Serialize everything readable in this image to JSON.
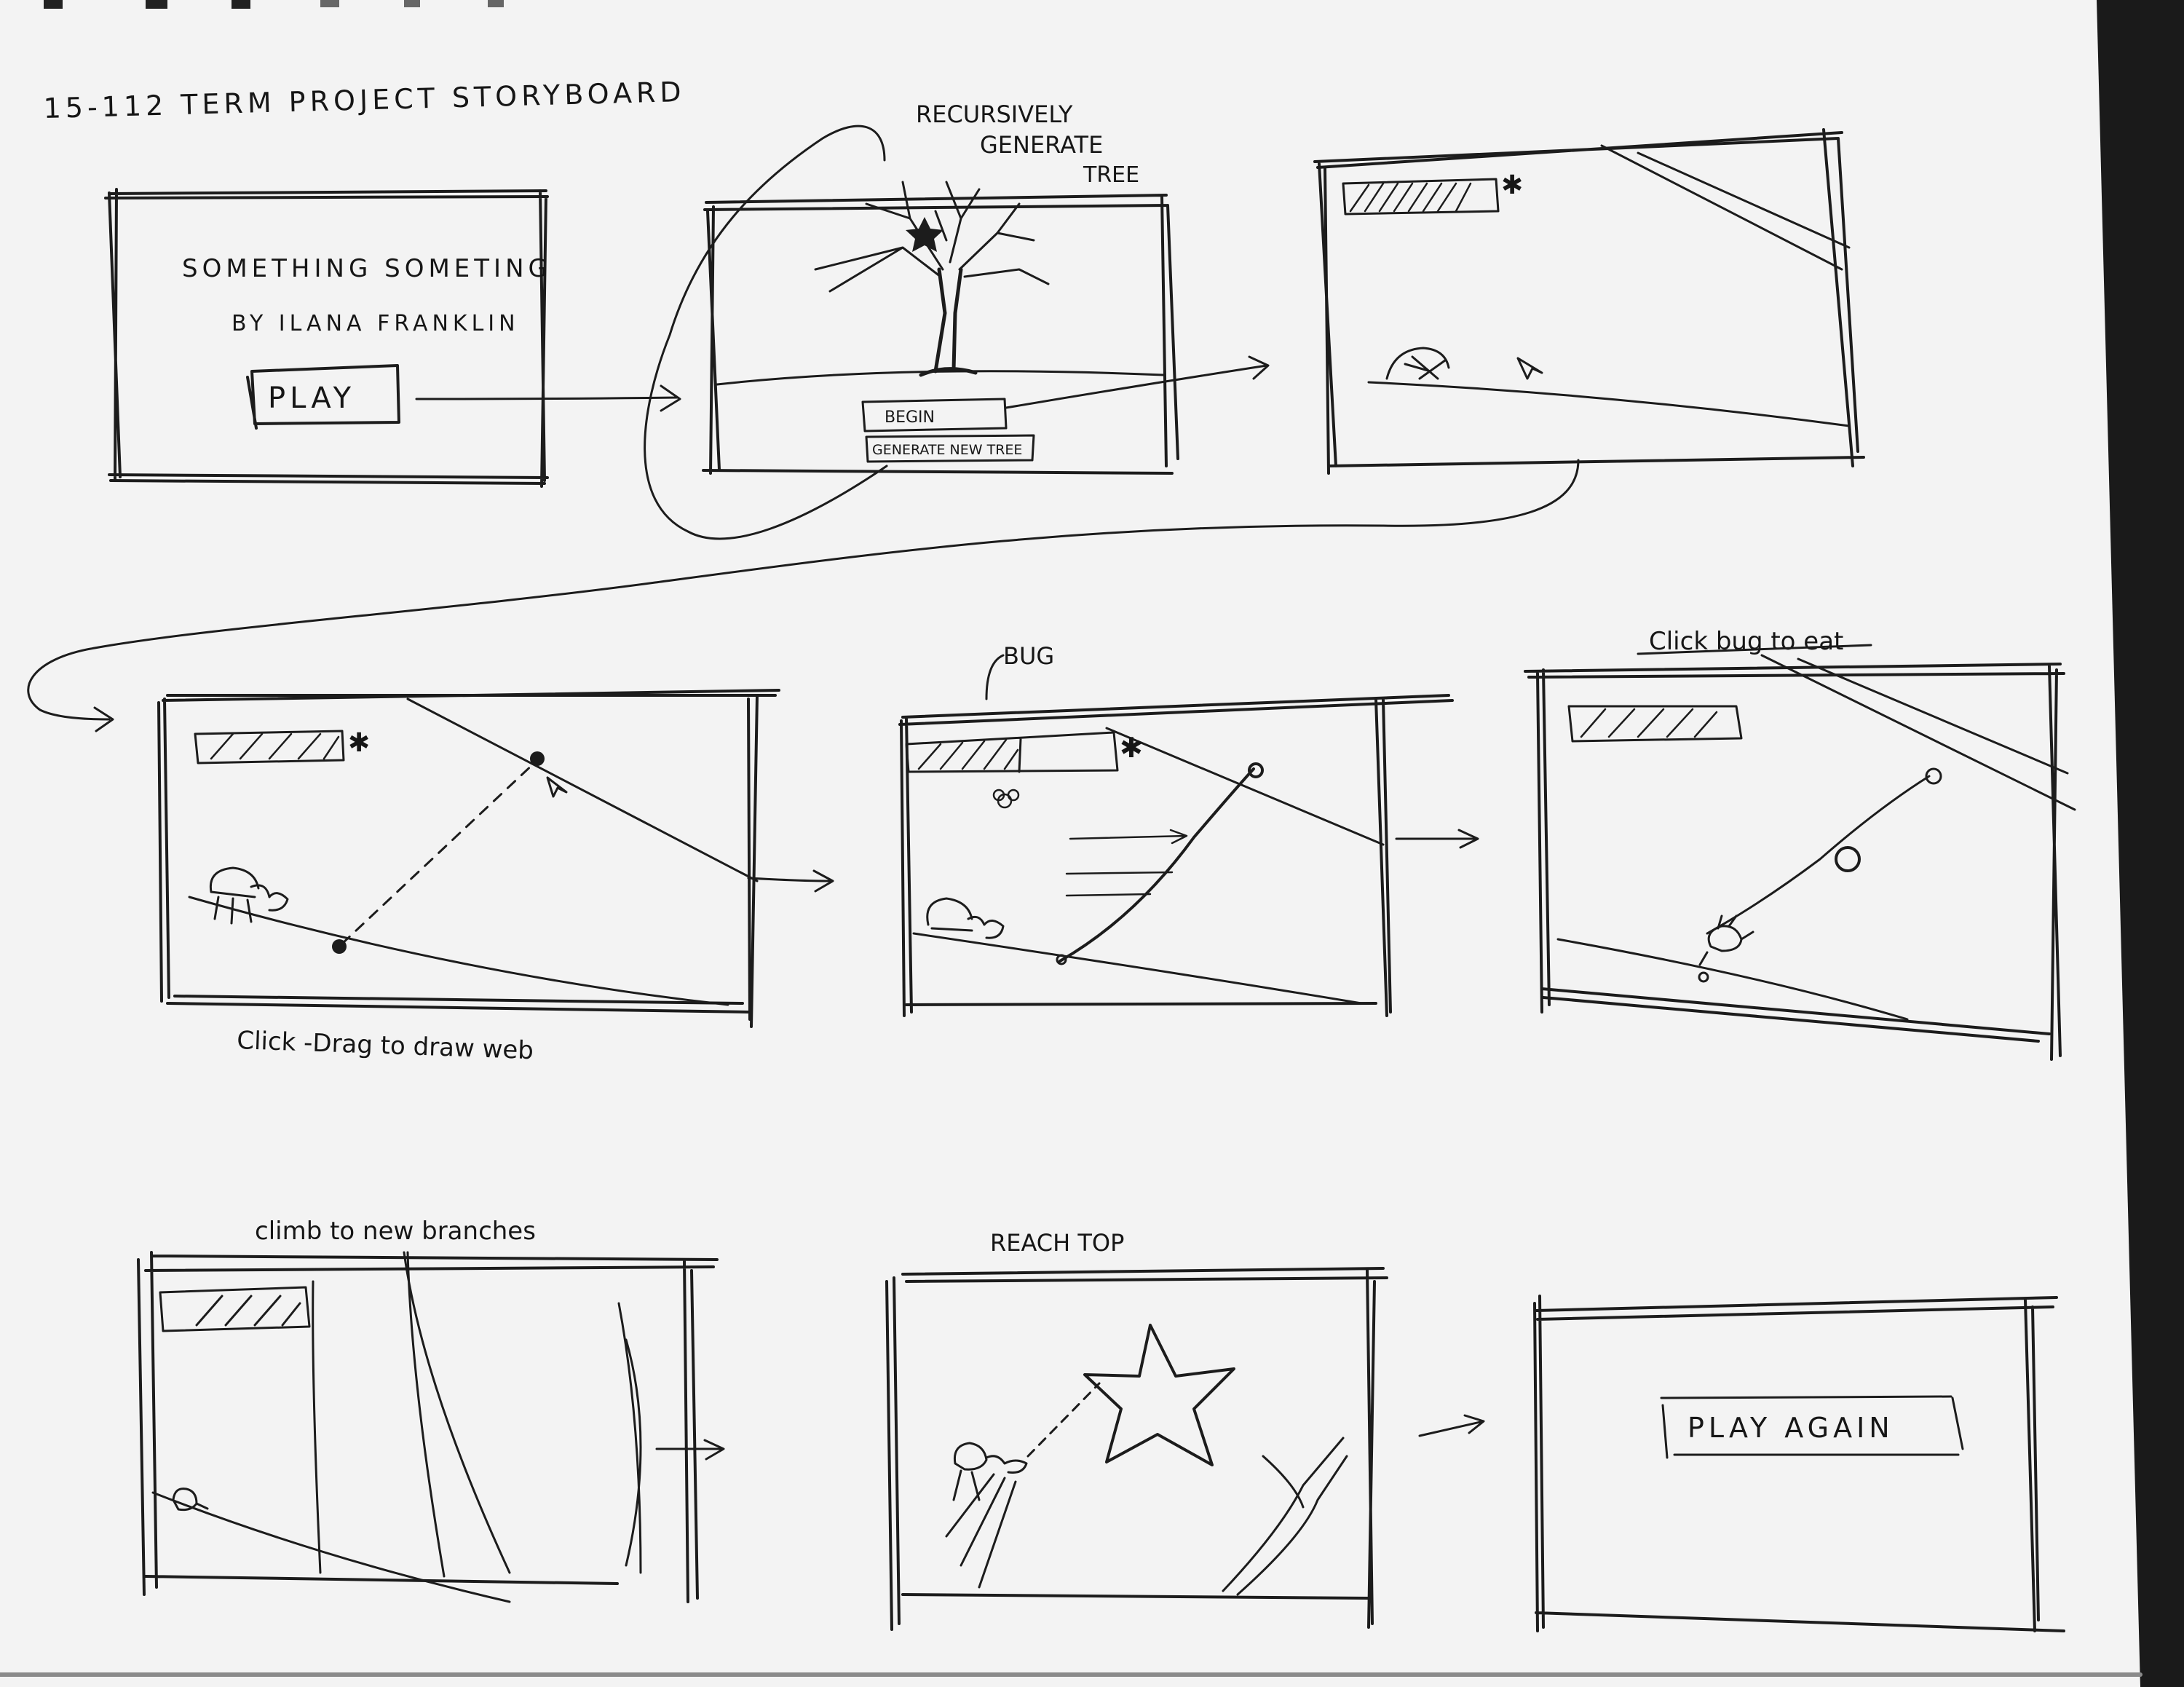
{
  "page_title": "15-112 TERM PROJECT STORYBOARD",
  "labels": {
    "recursively": "RECURSIVELY",
    "generate": "GENERATE",
    "tree": "TREE",
    "game_title": "SOMETHING SOMETING",
    "author": "BY ILANA FRANKLIN",
    "play_button": "PLAY",
    "begin_button": "BEGIN",
    "generate_new_tree_button": "GENERATE NEW TREE",
    "bug": "BUG",
    "drag_caption": "Click -Drag to draw web",
    "eat_caption": "Click bug to eat",
    "climb_caption": "climb to new branches",
    "top_caption": "REACH TOP",
    "play_again_button": "PLAY AGAIN"
  }
}
